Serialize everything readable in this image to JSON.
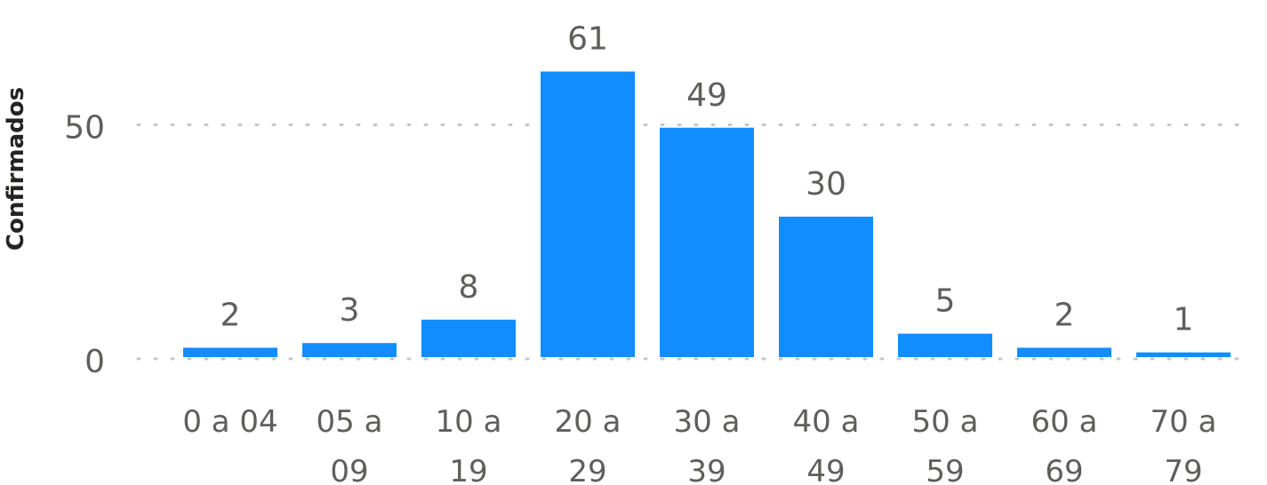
{
  "chart_data": {
    "type": "bar",
    "categories": [
      [
        "0 a 04"
      ],
      [
        "05 a",
        "09"
      ],
      [
        "10 a",
        "19"
      ],
      [
        "20 a",
        "29"
      ],
      [
        "30 a",
        "39"
      ],
      [
        "40 a",
        "49"
      ],
      [
        "50 a",
        "59"
      ],
      [
        "60 a",
        "69"
      ],
      [
        "70 a",
        "79"
      ]
    ],
    "values": [
      2,
      3,
      8,
      61,
      49,
      30,
      5,
      2,
      1
    ],
    "ylabel": "Confirmados",
    "xlabel": "",
    "ylim": [
      0,
      67
    ],
    "yticks": [
      0,
      50
    ],
    "grid": true,
    "colors": {
      "bar": "#118DFF",
      "text": "#605E5C",
      "axis_title": "#252423",
      "grid": "#C8C6C4"
    }
  }
}
